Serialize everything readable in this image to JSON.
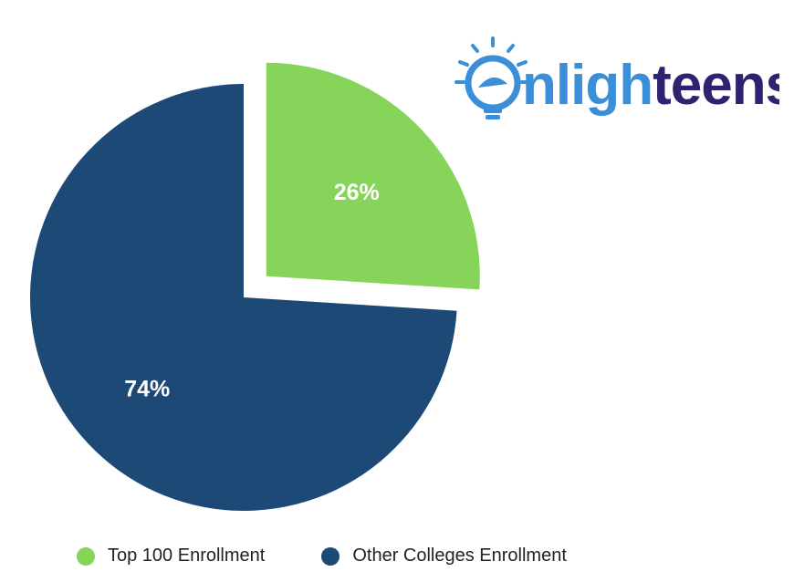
{
  "brand": {
    "logo_text": "enlighteens",
    "logo_text_colors": {
      "bulb": "#3b8fd9",
      "primary": "#3b8fd9",
      "secondary": "#2e2371"
    }
  },
  "chart_data": {
    "type": "pie",
    "title": "",
    "slices": [
      {
        "name": "Top 100 Enrollment",
        "value": 26,
        "label": "26%",
        "color": "#86d45a",
        "exploded": true
      },
      {
        "name": "Other Colleges Enrollment",
        "value": 74,
        "label": "74%",
        "color": "#1d4976",
        "exploded": false
      }
    ],
    "legend": {
      "placement": "bottom",
      "items": [
        "Top 100 Enrollment",
        "Other Colleges Enrollment"
      ]
    }
  }
}
